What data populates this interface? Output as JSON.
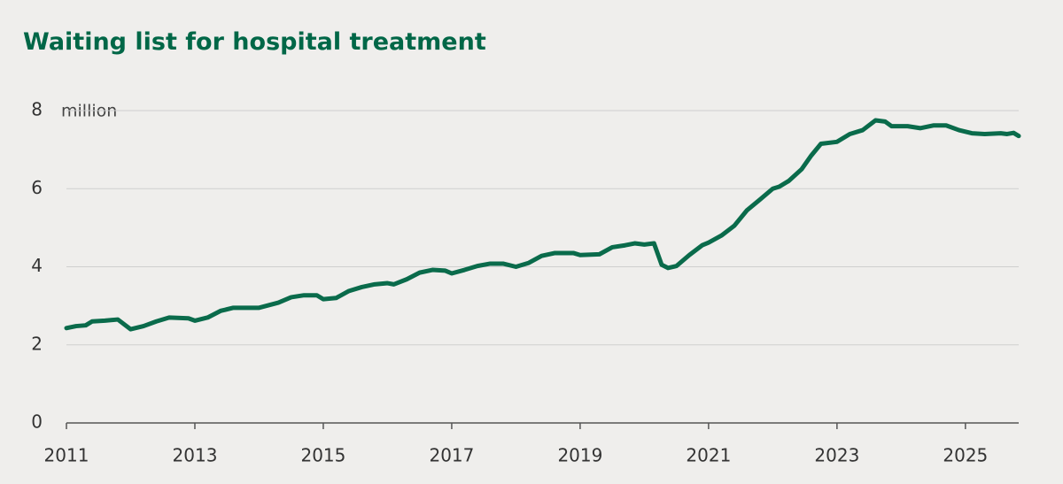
{
  "chart_data": {
    "type": "line",
    "title": "Waiting list for hospital treatment",
    "y_label": "million",
    "x": [
      2011.0,
      2011.15,
      2011.3,
      2011.4,
      2011.6,
      2011.8,
      2012.0,
      2012.2,
      2012.4,
      2012.6,
      2012.9,
      2013.0,
      2013.2,
      2013.4,
      2013.6,
      2014.0,
      2014.3,
      2014.5,
      2014.7,
      2014.9,
      2015.0,
      2015.2,
      2015.4,
      2015.6,
      2015.8,
      2016.0,
      2016.1,
      2016.3,
      2016.5,
      2016.7,
      2016.9,
      2017.0,
      2017.2,
      2017.4,
      2017.6,
      2017.8,
      2018.0,
      2018.2,
      2018.4,
      2018.6,
      2018.9,
      2019.0,
      2019.3,
      2019.5,
      2019.7,
      2019.85,
      2020.0,
      2020.15,
      2020.27,
      2020.37,
      2020.5,
      2020.7,
      2020.9,
      2021.0,
      2021.2,
      2021.4,
      2021.6,
      2021.8,
      2022.0,
      2022.1,
      2022.25,
      2022.45,
      2022.6,
      2022.75,
      2023.0,
      2023.2,
      2023.4,
      2023.6,
      2023.75,
      2023.85,
      2024.1,
      2024.3,
      2024.5,
      2024.7,
      2024.9,
      2025.1,
      2025.3,
      2025.55,
      2025.65,
      2025.75,
      2025.83
    ],
    "series": [
      {
        "name": "Waiting list",
        "color": "#0a6b4b",
        "values": [
          2.43,
          2.48,
          2.5,
          2.6,
          2.62,
          2.65,
          2.4,
          2.48,
          2.6,
          2.7,
          2.68,
          2.62,
          2.7,
          2.87,
          2.95,
          2.95,
          3.08,
          3.22,
          3.27,
          3.27,
          3.17,
          3.2,
          3.38,
          3.48,
          3.55,
          3.58,
          3.55,
          3.68,
          3.85,
          3.92,
          3.9,
          3.83,
          3.92,
          4.02,
          4.08,
          4.08,
          4.0,
          4.1,
          4.28,
          4.35,
          4.35,
          4.3,
          4.32,
          4.5,
          4.55,
          4.6,
          4.57,
          4.6,
          4.05,
          3.97,
          4.02,
          4.3,
          4.55,
          4.62,
          4.8,
          5.05,
          5.45,
          5.72,
          6.0,
          6.05,
          6.2,
          6.5,
          6.85,
          7.15,
          7.2,
          7.4,
          7.5,
          7.75,
          7.72,
          7.6,
          7.6,
          7.55,
          7.62,
          7.62,
          7.5,
          7.42,
          7.4,
          7.42,
          7.4,
          7.43,
          7.35
        ]
      }
    ],
    "xlim": [
      2011,
      2025.83
    ],
    "xticks": [
      2011,
      2013,
      2015,
      2017,
      2019,
      2021,
      2023,
      2025
    ],
    "ylim": [
      0,
      8
    ],
    "yticks": [
      0,
      2,
      4,
      6,
      8
    ],
    "grid": true
  }
}
